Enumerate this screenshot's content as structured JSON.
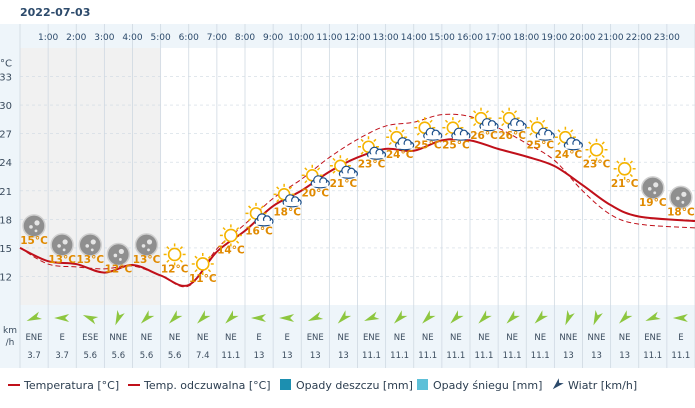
{
  "header": {
    "date": "2022-07-03"
  },
  "legend": [
    {
      "id": "temp",
      "label": "Temperatura [°C]",
      "kind": "line-solid",
      "color": "#c0101a"
    },
    {
      "id": "feels",
      "label": "Temp. odczuwalna [°C]",
      "kind": "line-solid",
      "color": "#c0101a"
    },
    {
      "id": "rain",
      "label": "Opady deszczu [mm]",
      "kind": "box",
      "color": "#1c8fb0"
    },
    {
      "id": "snow",
      "label": "Opady śniegu [mm]",
      "kind": "box",
      "color": "#5ec0d8"
    },
    {
      "id": "wind",
      "label": "Wiatr [km/h]",
      "kind": "arrow",
      "color": "#2c4a6b"
    }
  ],
  "wind_unit": [
    "km",
    "/h"
  ],
  "colors": {
    "temp_line": "#c0101a",
    "panel_bg": "#eef5fa",
    "grid": "#cfd9e2",
    "night": "#f1f1f1",
    "wind_arrow": "#8dc63f",
    "label": "#e08a00"
  },
  "chart_data": {
    "type": "line",
    "x": [
      "1:00",
      "2:00",
      "3:00",
      "4:00",
      "5:00",
      "6:00",
      "7:00",
      "8:00",
      "9:00",
      "10:00",
      "11:00",
      "12:00",
      "13:00",
      "14:00",
      "15:00",
      "16:00",
      "17:00",
      "18:00",
      "19:00",
      "20:00",
      "21:00",
      "22:00",
      "23:00"
    ],
    "ylim": [
      9,
      36
    ],
    "y_unit": "°C",
    "y_ticks": [
      12,
      15,
      18,
      21,
      24,
      27,
      30,
      33
    ],
    "grid": true,
    "series": [
      {
        "id": "temp",
        "name": "Temperatura [°C]",
        "values": [
          15,
          13.6,
          13.3,
          12.4,
          13.2,
          12.1,
          11.1,
          14.6,
          16.8,
          19.4,
          21,
          23,
          24.5,
          25.4,
          25.2,
          26.3,
          26.3,
          25.4,
          24.6,
          23.6,
          21.6,
          19.5,
          18.3
        ]
      },
      {
        "id": "feels",
        "name": "Temp. odczuwalna [°C]",
        "values": [
          15,
          13.3,
          13.0,
          12.8,
          13.1,
          12.1,
          11.0,
          14.9,
          17.5,
          20.2,
          22.2,
          24.5,
          26.4,
          27.8,
          28.2,
          29.0,
          28.8,
          27.6,
          26.0,
          24.2,
          21.0,
          18.5,
          17.5
        ]
      }
    ],
    "hourly_labels": [
      "15°C",
      "13°C",
      "13°C",
      "12°C",
      "13°C",
      "12°C",
      "11°C",
      "14°C",
      "16°C",
      "18°C",
      "20°C",
      "21°C",
      "23°C",
      "24°C",
      "25°C",
      "25°C",
      "26°C",
      "26°C",
      "25°C",
      "24°C",
      "23°C",
      "21°C",
      "19°C",
      "18°C"
    ],
    "icons": [
      "moon",
      "moon",
      "moon",
      "moon",
      "moon",
      "sun",
      "sun",
      "sun",
      "sun-cloud",
      "sun-cloud",
      "sun-cloud",
      "sun-cloud",
      "sun-cloud",
      "sun-cloud",
      "sun-cloud",
      "sun-cloud",
      "sun-cloud",
      "sun-cloud",
      "sun-cloud",
      "sun-cloud",
      "sun",
      "sun",
      "moon",
      "moon"
    ],
    "wind": {
      "directions": [
        "ENE",
        "E",
        "ESE",
        "NNE",
        "NE",
        "NE",
        "NE",
        "NE",
        "E",
        "E",
        "ENE",
        "NE",
        "ENE",
        "NE",
        "NE",
        "NE",
        "NE",
        "NE",
        "NE",
        "NNE",
        "NNE",
        "NE",
        "ENE",
        "E"
      ],
      "speeds": [
        "3.7",
        "3.7",
        "5.6",
        "5.6",
        "5.6",
        "5.6",
        "7.4",
        "11.1",
        "13",
        "13",
        "13",
        "13",
        "11.1",
        "11.1",
        "11.1",
        "11.1",
        "11.1",
        "11.1",
        "11.1",
        "13",
        "13",
        "13",
        "11.1",
        "11.1"
      ]
    }
  }
}
